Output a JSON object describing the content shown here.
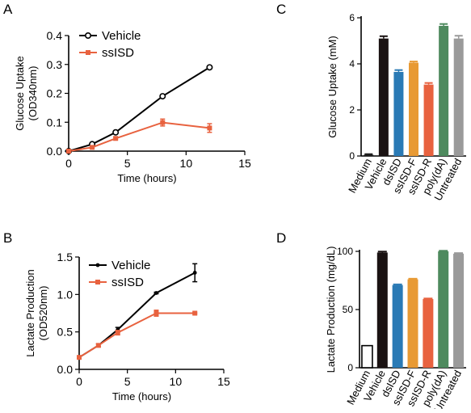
{
  "panels": {
    "A": "A",
    "B": "B",
    "C": "C",
    "D": "D"
  },
  "chart_data": [
    {
      "id": "A",
      "type": "line",
      "title": "",
      "xlabel": "Time (hours)",
      "ylabel": "Glucose Uptake",
      "ylabel2": "(OD340nm)",
      "xlim": [
        0,
        15
      ],
      "ylim": [
        0,
        0.4
      ],
      "xticks": [
        0,
        5,
        10,
        15
      ],
      "yticks": [
        "0.0",
        "0.1",
        "0.2",
        "0.3",
        "0.4"
      ],
      "legend_position": "top-left",
      "series": [
        {
          "name": "Vehicle",
          "color": "#000000",
          "marker": "open-circle",
          "x": [
            0,
            2,
            4,
            8,
            12
          ],
          "y": [
            0.0,
            0.024,
            0.065,
            0.19,
            0.29
          ],
          "err": [
            0,
            0.003,
            0.004,
            0.004,
            0.004
          ]
        },
        {
          "name": "ssISD",
          "color": "#e8623f",
          "marker": "square",
          "x": [
            0,
            2,
            4,
            8,
            12
          ],
          "y": [
            0.0,
            0.013,
            0.044,
            0.099,
            0.08
          ],
          "err": [
            0,
            0.003,
            0.004,
            0.012,
            0.015
          ]
        }
      ]
    },
    {
      "id": "B",
      "type": "line",
      "title": "",
      "xlabel": "Time (hours)",
      "ylabel": "Lactate Production",
      "ylabel2": "(OD520nm)",
      "xlim": [
        0,
        15
      ],
      "ylim": [
        0,
        1.5
      ],
      "xticks": [
        0,
        5,
        10,
        15
      ],
      "yticks": [
        "0.0",
        "0.5",
        "1.0",
        "1.5"
      ],
      "legend_position": "top-left",
      "series": [
        {
          "name": "Vehicle",
          "color": "#000000",
          "marker": "dot",
          "x": [
            0,
            2,
            4,
            8,
            12
          ],
          "y": [
            0.16,
            0.32,
            0.53,
            1.02,
            1.29
          ],
          "err": [
            0.01,
            0.02,
            0.03,
            0.01,
            0.12
          ]
        },
        {
          "name": "ssISD",
          "color": "#e8623f",
          "marker": "square",
          "x": [
            0,
            2,
            4,
            8,
            12
          ],
          "y": [
            0.16,
            0.32,
            0.49,
            0.75,
            0.75
          ],
          "err": [
            0.01,
            0.02,
            0.03,
            0.04,
            0.01
          ]
        }
      ]
    },
    {
      "id": "C",
      "type": "bar",
      "title": "",
      "xlabel": "",
      "ylabel": "Glucose Uptake (mM)",
      "ylim": [
        0,
        6
      ],
      "yticks": [
        "0",
        "2",
        "4",
        "6"
      ],
      "categories": [
        "Medium",
        "Vehicle",
        "dsISD",
        "ssISD-F",
        "ssISD-R",
        "poly(dA)",
        "Untreated"
      ],
      "values": [
        0.05,
        5.1,
        3.65,
        4.05,
        3.1,
        5.65,
        5.1
      ],
      "errors": [
        0.03,
        0.1,
        0.08,
        0.05,
        0.07,
        0.08,
        0.12
      ],
      "colors": [
        "#1a1a1a",
        "#1a1212",
        "#2a7ab5",
        "#e89a34",
        "#e8623f",
        "#4e8a5e",
        "#9a9a9a"
      ]
    },
    {
      "id": "D",
      "type": "bar",
      "title": "",
      "xlabel": "",
      "ylabel": "Lactate Production (mg/dL)",
      "ylim": [
        0,
        100
      ],
      "yticks": [
        "0",
        "50",
        "100"
      ],
      "categories": [
        "Medium",
        "Vehicle",
        "dsISD",
        "ssISD-F",
        "ssISD-R",
        "poly(dA)",
        "Untreated"
      ],
      "values": [
        19,
        99,
        71,
        76,
        59,
        100,
        98
      ],
      "errors": [
        0,
        0.8,
        0.6,
        0.5,
        0.5,
        0.5,
        0.5
      ],
      "colors": [
        "#ffffff",
        "#1a1212",
        "#2a7ab5",
        "#e89a34",
        "#e8623f",
        "#4e8a5e",
        "#9a9a9a"
      ],
      "edge_first": "#000000"
    }
  ]
}
